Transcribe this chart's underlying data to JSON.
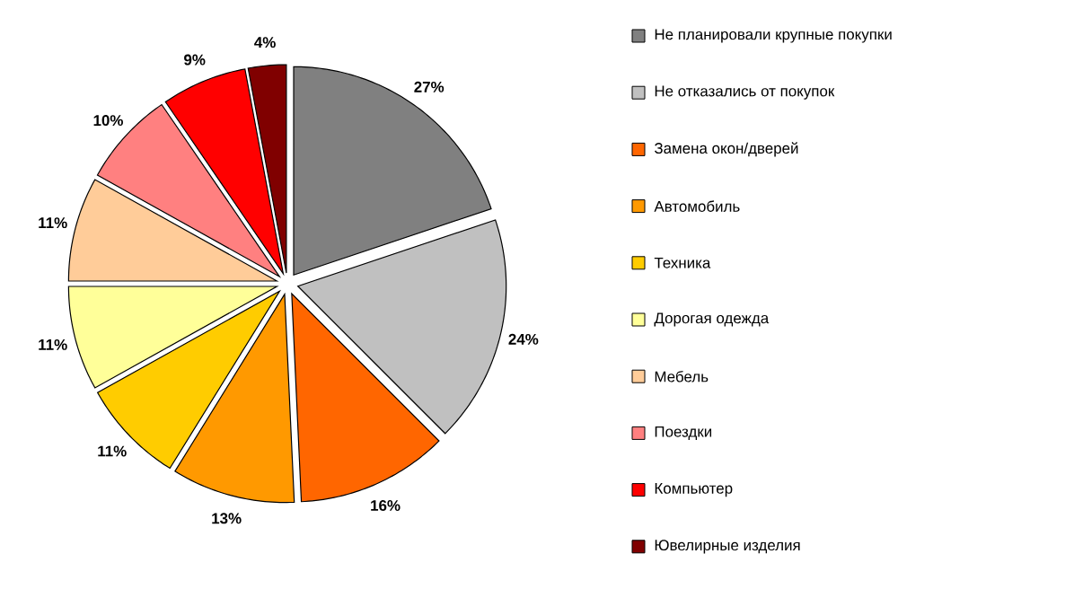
{
  "chart_data": {
    "type": "pie",
    "categories": [
      "Не планировали крупные покупки",
      "Не отказались от покупок",
      "Замена окон/дверей",
      "Автомобиль",
      "Техника",
      "Дорогая одежда",
      "Мебель",
      "Поездки",
      "Компьютер",
      "Ювелирные изделия"
    ],
    "values": [
      27,
      24,
      16,
      13,
      11,
      11,
      11,
      10,
      9,
      4
    ],
    "value_labels": [
      "27%",
      "24%",
      "16%",
      "13%",
      "11%",
      "11%",
      "11%",
      "10%",
      "9%",
      "4%"
    ],
    "colors": [
      "#808080",
      "#c0c0c0",
      "#ff6600",
      "#ff9900",
      "#ffcc00",
      "#ffff99",
      "#ffcc99",
      "#ff8080",
      "#ff0000",
      "#800000"
    ],
    "legend": "right"
  }
}
